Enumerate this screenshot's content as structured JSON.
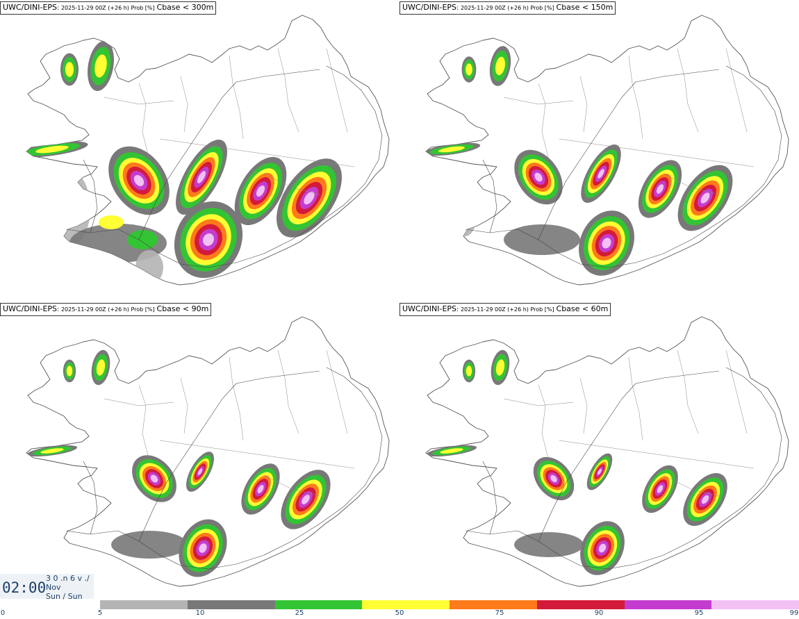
{
  "panels": [
    {
      "model": "UWC/DINI-EPS",
      "run": "2025-11-29 00Z (+26 h) Prob [%]",
      "field": "Cbase < 300m"
    },
    {
      "model": "UWC/DINI-EPS",
      "run": "2025-11-29 00Z (+26 h) Prob [%]",
      "field": "Cbase < 150m"
    },
    {
      "model": "UWC/DINI-EPS",
      "run": "2025-11-29 00Z (+26 h) Prob [%]",
      "field": "Cbase < 90m"
    },
    {
      "model": "UWC/DINI-EPS",
      "run": "2025-11-29 00Z (+26 h) Prob [%]",
      "field": "Cbase < 60m"
    }
  ],
  "time": {
    "clock": "02:00",
    "date_line1": "3 0 .n 6 v ./",
    "date_line2": "Nov",
    "date_line3": "Sun / Sun"
  },
  "legend": {
    "labels": [
      "0",
      "5",
      "10",
      "25",
      "50",
      "75",
      "90",
      "95",
      "99"
    ],
    "colors": [
      "#b4b4b4",
      "#787878",
      "#33c433",
      "#ffff33",
      "#ff7a1a",
      "#d41a3a",
      "#c43ccf",
      "#f3c0f3"
    ]
  },
  "map_colors": {
    "p5": "#b4b4b4",
    "p10": "#787878",
    "p25": "#33c433",
    "p50": "#ffff33",
    "p75": "#ff7a1a",
    "p90": "#d41a3a",
    "p95": "#c43ccf",
    "p99": "#f3c0f3"
  }
}
